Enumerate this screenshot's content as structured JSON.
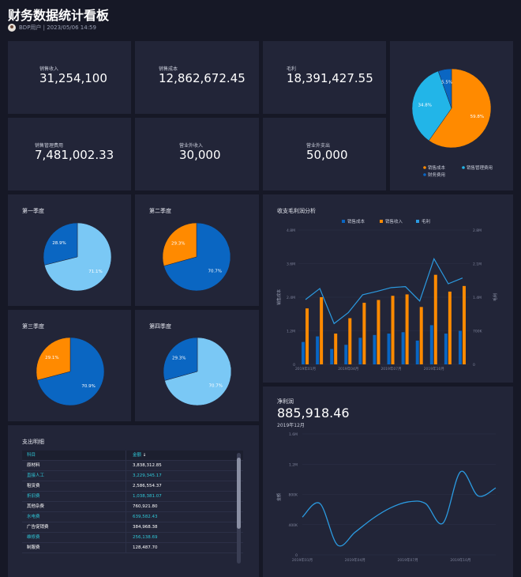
{
  "page": {
    "title": "财务数据统计看板",
    "meta": "BDP用户 | 2023/05/06 14:59"
  },
  "kpis": [
    {
      "label": "销售收入",
      "value": "31,254,100"
    },
    {
      "label": "销售成本",
      "value": "12,862,672.45"
    },
    {
      "label": "毛利",
      "value": "18,391,427.55"
    },
    {
      "label": "销售管理费用",
      "value": "7,481,002.33"
    },
    {
      "label": "营业外收入",
      "value": "30,000"
    },
    {
      "label": "营业外支出",
      "value": "50,000"
    }
  ],
  "colors": {
    "orange": "#ff8a00",
    "light_blue": "#22b5e8",
    "blue": "#0a66c2",
    "pale_blue": "#7ac8f5",
    "line": "#2b9ae0",
    "card": "#222538",
    "bg": "#161826"
  },
  "chart_data": [
    {
      "type": "pie",
      "slices": [
        {
          "name": "销售成本",
          "value": 59.8,
          "label": "59.8%",
          "color": "#ff8a00"
        },
        {
          "name": "销售管理费用",
          "value": 34.8,
          "label": "34.8%",
          "color": "#22b5e8"
        },
        {
          "name": "财务费用",
          "value": 5.5,
          "label": "5.5%",
          "color": "#0a66c2"
        }
      ],
      "legend": "bottom"
    },
    {
      "type": "pie",
      "title": "第一季度",
      "slices": [
        {
          "value": 71.1,
          "label": "71.1%",
          "color": "#7ac8f5"
        },
        {
          "value": 28.9,
          "label": "28.9%",
          "color": "#0a66c2"
        }
      ]
    },
    {
      "type": "pie",
      "title": "第二季度",
      "slices": [
        {
          "value": 70.7,
          "label": "70.7%",
          "color": "#0a66c2"
        },
        {
          "value": 29.3,
          "label": "29.3%",
          "color": "#ff8a00"
        }
      ]
    },
    {
      "type": "pie",
      "title": "第三季度",
      "slices": [
        {
          "value": 70.9,
          "label": "70.9%",
          "color": "#0a66c2"
        },
        {
          "value": 29.1,
          "label": "29.1%",
          "color": "#ff8a00"
        }
      ]
    },
    {
      "type": "pie",
      "title": "第四季度",
      "slices": [
        {
          "value": 70.7,
          "label": "70.7%",
          "color": "#7ac8f5"
        },
        {
          "value": 29.3,
          "label": "29.3%",
          "color": "#0a66c2"
        }
      ]
    },
    {
      "type": "bar",
      "title": "收支毛利润分析",
      "x": [
        "2019年01月",
        "2019年02月",
        "2019年03月",
        "2019年04月",
        "2019年05月",
        "2019年06月",
        "2019年07月",
        "2019年08月",
        "2019年09月",
        "2019年10月",
        "2019年11月",
        "2019年12月"
      ],
      "x_tick_labels": [
        "2019年01月",
        "2019年04月",
        "2019年07月",
        "2019年10月"
      ],
      "series": [
        {
          "name": "销售成本",
          "axis": "left",
          "color": "#0a66c2",
          "values": [
            0.8,
            1.0,
            0.55,
            0.7,
            0.95,
            1.05,
            1.1,
            1.15,
            0.85,
            1.4,
            1.1,
            1.2
          ]
        },
        {
          "name": "销售收入",
          "axis": "left",
          "color": "#ff8a00",
          "values": [
            2.0,
            2.4,
            1.1,
            1.65,
            2.2,
            2.3,
            2.45,
            2.5,
            2.05,
            3.2,
            2.6,
            2.8
          ]
        },
        {
          "name": "毛利",
          "axis": "right",
          "type": "line",
          "color": "#2b9ae0",
          "values": [
            1.35,
            1.58,
            0.85,
            1.08,
            1.45,
            1.52,
            1.6,
            1.62,
            1.32,
            2.2,
            1.68,
            1.8
          ]
        }
      ],
      "left_ticks": [
        "0",
        "1.2M",
        "2.4M",
        "3.6M",
        "4.8M"
      ],
      "right_ticks": [
        "0",
        "700K",
        "1.4M",
        "2.1M",
        "2.8M"
      ],
      "ylim_left": [
        0,
        4.8
      ],
      "ylim_right": [
        0,
        2.8
      ],
      "ylabel_left": "销售成本",
      "ylabel_right": "毛利",
      "legend": "top"
    },
    {
      "type": "line",
      "title": "净利润",
      "big_value": "885,918.46",
      "subtitle": "2019年12月",
      "x": [
        "2019年01月",
        "2019年02月",
        "2019年03月",
        "2019年04月",
        "2019年05月",
        "2019年06月",
        "2019年07月",
        "2019年08月",
        "2019年09月",
        "2019年10月",
        "2019年11月",
        "2019年12月"
      ],
      "x_tick_labels": [
        "2019年01月",
        "2019年04月",
        "2019年07月",
        "2019年10月"
      ],
      "values": [
        500,
        680,
        130,
        300,
        480,
        620,
        700,
        680,
        420,
        1100,
        780,
        885.9
      ],
      "y_ticks": [
        "0",
        "400K",
        "800K",
        "1.2M",
        "1.6M"
      ],
      "ylim": [
        0,
        1600
      ],
      "ylabel": "金额",
      "color": "#2b9ae0"
    }
  ],
  "expense_table": {
    "title": "支出明细",
    "headers": [
      "科目",
      "金额"
    ],
    "rows": [
      {
        "name": "原材料",
        "amount": "3,838,312.85",
        "highlight": false
      },
      {
        "name": "直接人工",
        "amount": "3,229,345.17",
        "highlight": true
      },
      {
        "name": "租赁费",
        "amount": "2,586,554.37",
        "highlight": false
      },
      {
        "name": "折旧费",
        "amount": "1,038,381.07",
        "highlight": true
      },
      {
        "name": "其他杂费",
        "amount": "760,921.80",
        "highlight": false
      },
      {
        "name": "水电费",
        "amount": "639,582.43",
        "highlight": true
      },
      {
        "name": "广告促销费",
        "amount": "384,968.38",
        "highlight": false
      },
      {
        "name": "维修费",
        "amount": "256,138.69",
        "highlight": true
      },
      {
        "name": "制服费",
        "amount": "128,487.70",
        "highlight": false
      }
    ]
  }
}
